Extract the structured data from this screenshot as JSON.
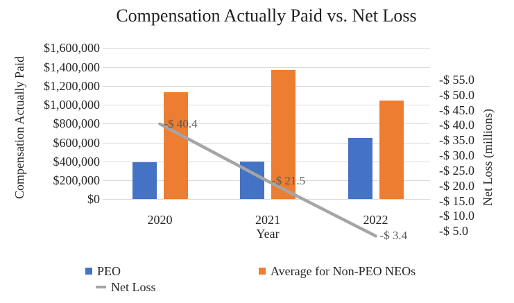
{
  "chart_data": {
    "type": "combo-bar-line",
    "title": "Compensation Actually Paid vs. Net Loss",
    "categories": [
      "2020",
      "2021",
      "2022"
    ],
    "xlabel": "Year",
    "left_axis": {
      "label": "Compensation Actually Paid",
      "min": 0,
      "max": 1600000,
      "tick_step": 200000,
      "ticks": [
        "$1,600,000",
        "$1,400,000",
        "$1,200,000",
        "$1,000,000",
        "$800,000",
        "$600,000",
        "$400,000",
        "$200,000",
        "$0"
      ],
      "grid": true
    },
    "right_axis": {
      "label": "Net Loss (millions)",
      "reversed": true,
      "tick_values": [
        -55.0,
        -50.0,
        -45.0,
        -40.0,
        -35.0,
        -30.0,
        -25.0,
        -20.0,
        -15.0,
        -10.0,
        -5.0
      ],
      "ticks": [
        "-$ 55.0",
        "-$ 50.0",
        "-$ 45.0",
        "-$ 40.0",
        "-$ 35.0",
        "-$ 30.0",
        "-$ 25.0",
        "-$ 20.0",
        "-$ 15.0",
        "-$ 10.0",
        "-$ 5.0"
      ]
    },
    "series": [
      {
        "name": "PEO",
        "type": "bar",
        "axis": "left",
        "color": "#4472C4",
        "values": [
          390000,
          400000,
          645000
        ]
      },
      {
        "name": "Average for Non-PEO NEOs",
        "type": "bar",
        "axis": "left",
        "color": "#ED7D31",
        "values": [
          1135000,
          1365000,
          1045000
        ]
      },
      {
        "name": "Net Loss",
        "type": "line",
        "axis": "right",
        "color": "#A5A5A5",
        "values": [
          -40.4,
          -21.5,
          -3.4
        ],
        "data_labels": [
          "-$ 40.4",
          "-$ 21.5",
          "-$ 3.4"
        ]
      }
    ],
    "legend_position": "bottom",
    "colors": {
      "grid": "#D9D9D9",
      "axis_text": "#262626",
      "data_label_text": "#595959",
      "background": "#FFFFFF"
    }
  }
}
